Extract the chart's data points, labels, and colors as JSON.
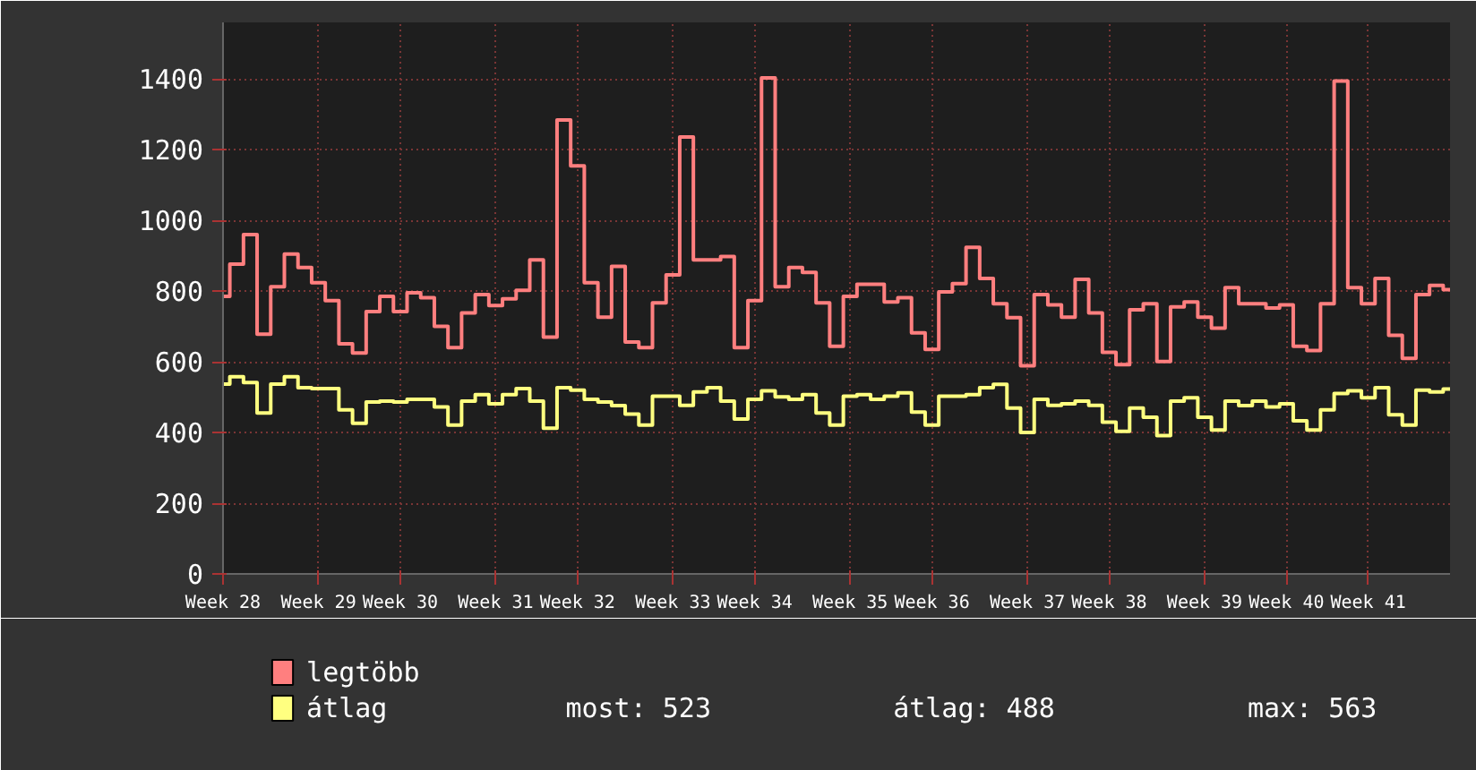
{
  "chart_data": {
    "type": "step",
    "categories": [
      "Week 28",
      null,
      null,
      null,
      null,
      null,
      null,
      "Week 29",
      null,
      null,
      null,
      null,
      null,
      "Week 30",
      null,
      null,
      null,
      null,
      null,
      null,
      "Week 31",
      null,
      null,
      null,
      null,
      null,
      "Week 32",
      null,
      null,
      null,
      null,
      null,
      null,
      "Week 33",
      null,
      null,
      null,
      null,
      null,
      "Week 34",
      null,
      null,
      null,
      null,
      null,
      null,
      "Week 35",
      null,
      null,
      null,
      null,
      null,
      "Week 36",
      null,
      null,
      null,
      null,
      null,
      null,
      "Week 37",
      null,
      null,
      null,
      null,
      null,
      "Week 38",
      null,
      null,
      null,
      null,
      null,
      null,
      "Week 39",
      null,
      null,
      null,
      null,
      null,
      "Week 40",
      null,
      null,
      null,
      null,
      null,
      "Week 41",
      null,
      null,
      null,
      null,
      null,
      null
    ],
    "series": [
      {
        "name": "legtöbb",
        "color": "#ff7f7f",
        "values": [
          785,
          876,
          960,
          678,
          812,
          905,
          867,
          824,
          773,
          651,
          625,
          742,
          785,
          742,
          795,
          781,
          700,
          640,
          738,
          790,
          759,
          778,
          802,
          888,
          670,
          1284,
          1154,
          824,
          726,
          870,
          656,
          640,
          767,
          846,
          1236,
          888,
          888,
          898,
          640,
          773,
          1403,
          812,
          867,
          853,
          767,
          644,
          785,
          819,
          819,
          769,
          781,
          682,
          635,
          798,
          821,
          924,
          836,
          764,
          725,
          589,
          790,
          761,
          726,
          833,
          738,
          627,
          592,
          747,
          764,
          601,
          755,
          769,
          726,
          695,
          810,
          764,
          764,
          752,
          761,
          644,
          632,
          764,
          1394,
          810,
          764,
          836,
          675,
          610,
          790,
          816,
          804
        ]
      },
      {
        "name": "átlag",
        "color": "#ffff80",
        "values": [
          537,
          558,
          541,
          455,
          537,
          558,
          527,
          524,
          524,
          464,
          426,
          486,
          489,
          486,
          494,
          494,
          472,
          421,
          489,
          507,
          481,
          507,
          524,
          489,
          412,
          527,
          520,
          494,
          486,
          476,
          452,
          421,
          503,
          503,
          477,
          515,
          527,
          489,
          438,
          494,
          518,
          501,
          494,
          507,
          455,
          421,
          503,
          507,
          494,
          503,
          512,
          458,
          421,
          503,
          503,
          507,
          527,
          536,
          469,
          400,
          494,
          477,
          481,
          489,
          477,
          429,
          403,
          469,
          443,
          391,
          489,
          498,
          443,
          407,
          489,
          476,
          489,
          472,
          481,
          433,
          407,
          464,
          510,
          518,
          498,
          527,
          450,
          421,
          520,
          515,
          523
        ]
      }
    ],
    "ylim": [
      0,
      1560
    ],
    "yticks": [
      0,
      200,
      400,
      600,
      800,
      1000,
      1200,
      1400
    ],
    "grid": true,
    "legend": "bottom",
    "annotations": [
      "most: 523",
      "átlag: 488",
      "max: 563"
    ]
  }
}
